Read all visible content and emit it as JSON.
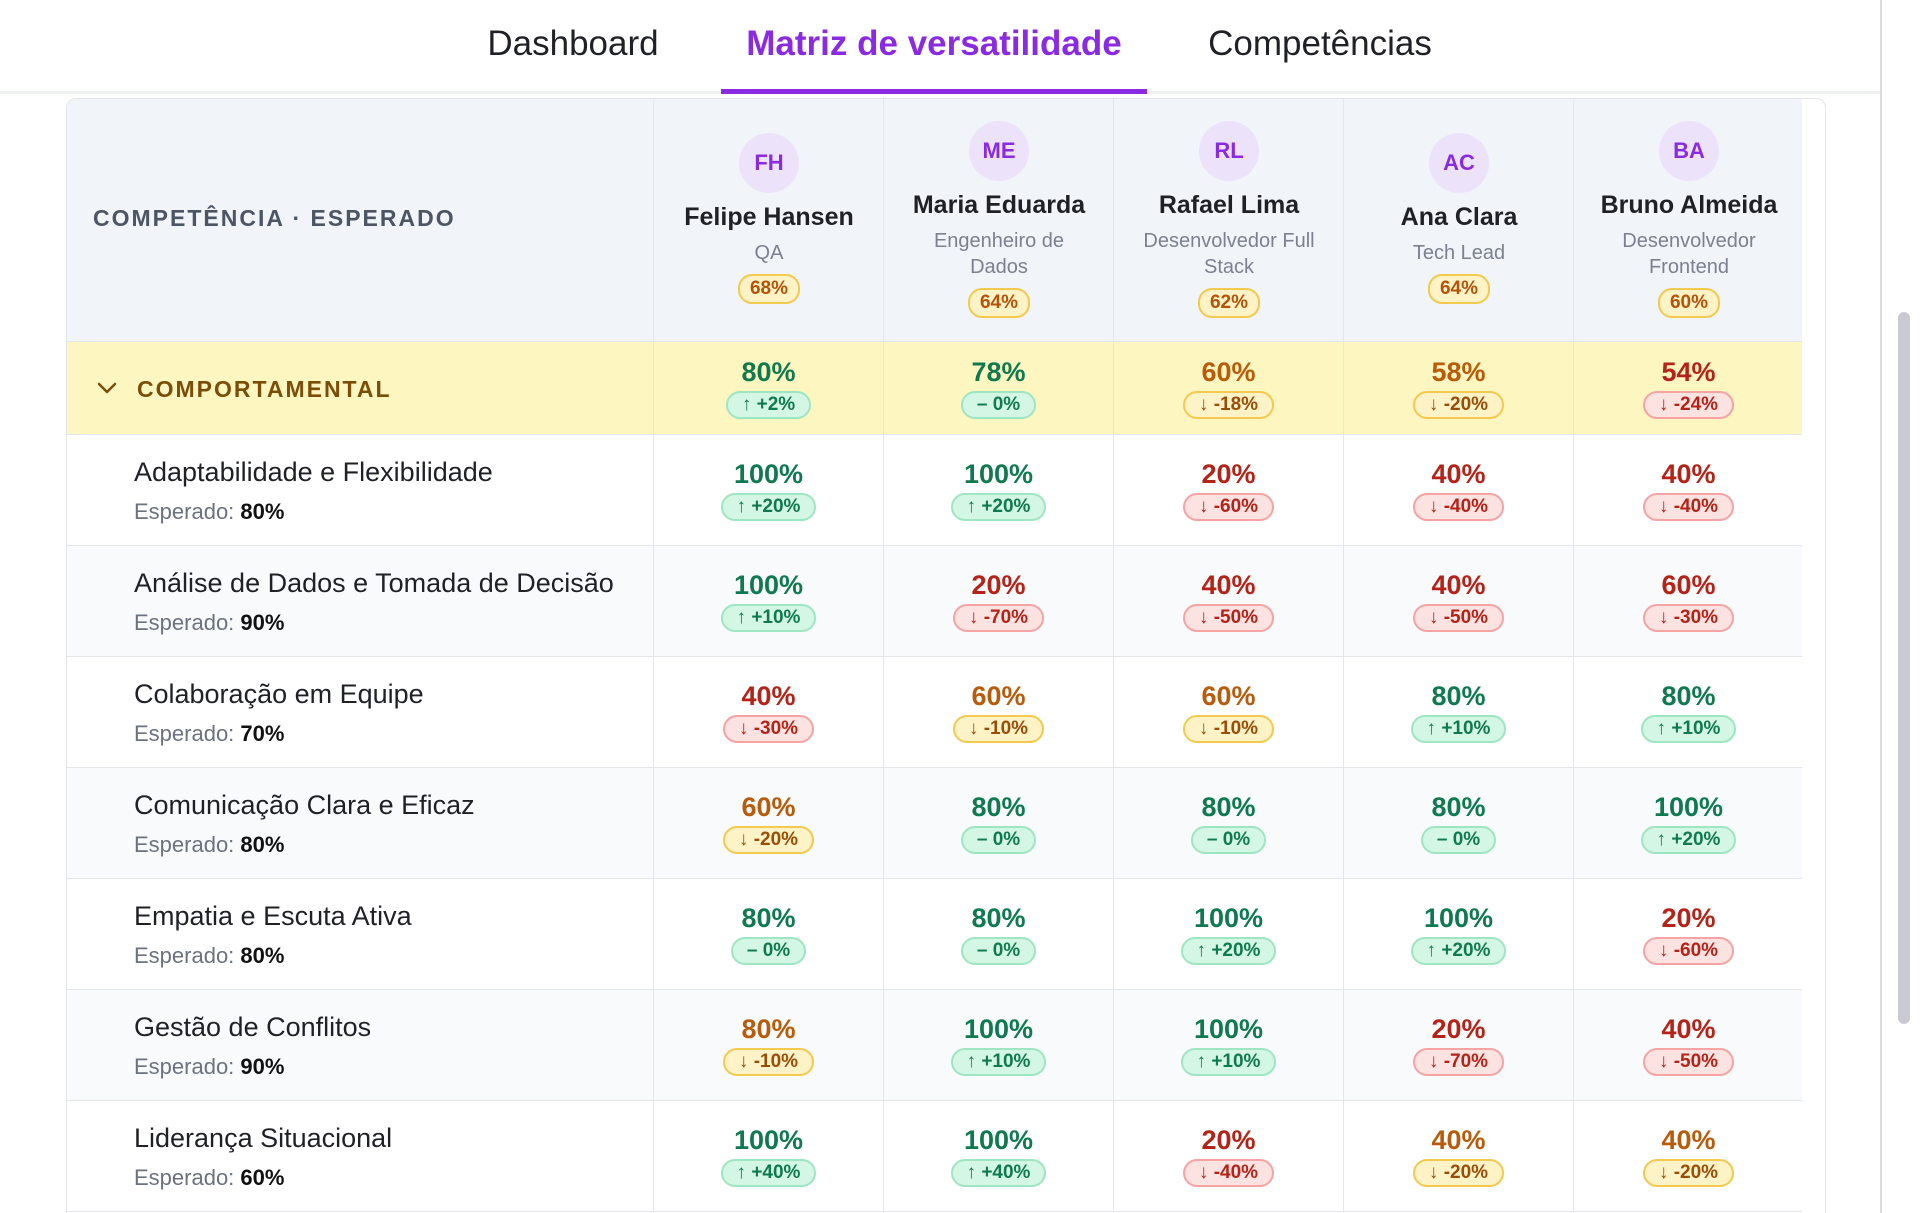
{
  "tabs": [
    {
      "label": "Dashboard",
      "active": false
    },
    {
      "label": "Matriz de versatilidade",
      "active": true
    },
    {
      "label": "Competências",
      "active": false
    }
  ],
  "header": {
    "competency_label": "COMPETÊNCIA · ESPERADO"
  },
  "people": [
    {
      "initials": "FH",
      "name": "Felipe Hansen",
      "role": "QA",
      "score": "68%"
    },
    {
      "initials": "ME",
      "name": "Maria Eduarda",
      "role": "Engenheiro de Dados",
      "score": "64%"
    },
    {
      "initials": "RL",
      "name": "Rafael Lima",
      "role": "Desenvolvedor Full Stack",
      "score": "62%"
    },
    {
      "initials": "AC",
      "name": "Ana Clara",
      "role": "Tech Lead",
      "score": "64%"
    },
    {
      "initials": "BA",
      "name": "Bruno Almeida",
      "role": "Desenvolvedor Frontend",
      "score": "60%"
    }
  ],
  "group": {
    "label": "COMPORTAMENTAL",
    "cells": [
      {
        "value": "80%",
        "delta": "↑ +2%",
        "status": "g"
      },
      {
        "value": "78%",
        "delta": "– 0%",
        "status": "g"
      },
      {
        "value": "60%",
        "delta": "↓ -18%",
        "status": "o"
      },
      {
        "value": "58%",
        "delta": "↓ -20%",
        "status": "o"
      },
      {
        "value": "54%",
        "delta": "↓ -24%",
        "status": "r"
      }
    ]
  },
  "expected_label": "Esperado:",
  "competencies": [
    {
      "name": "Adaptabilidade e Flexibilidade",
      "expected": "80%",
      "cells": [
        {
          "value": "100%",
          "delta": "↑ +20%",
          "status": "g"
        },
        {
          "value": "100%",
          "delta": "↑ +20%",
          "status": "g"
        },
        {
          "value": "20%",
          "delta": "↓ -60%",
          "status": "r"
        },
        {
          "value": "40%",
          "delta": "↓ -40%",
          "status": "r"
        },
        {
          "value": "40%",
          "delta": "↓ -40%",
          "status": "r"
        }
      ]
    },
    {
      "name": "Análise de Dados e Tomada de Decisão",
      "expected": "90%",
      "cells": [
        {
          "value": "100%",
          "delta": "↑ +10%",
          "status": "g"
        },
        {
          "value": "20%",
          "delta": "↓ -70%",
          "status": "r"
        },
        {
          "value": "40%",
          "delta": "↓ -50%",
          "status": "r"
        },
        {
          "value": "40%",
          "delta": "↓ -50%",
          "status": "r"
        },
        {
          "value": "60%",
          "delta": "↓ -30%",
          "status": "r"
        }
      ]
    },
    {
      "name": "Colaboração em Equipe",
      "expected": "70%",
      "cells": [
        {
          "value": "40%",
          "delta": "↓ -30%",
          "status": "r"
        },
        {
          "value": "60%",
          "delta": "↓ -10%",
          "status": "o"
        },
        {
          "value": "60%",
          "delta": "↓ -10%",
          "status": "o"
        },
        {
          "value": "80%",
          "delta": "↑ +10%",
          "status": "g"
        },
        {
          "value": "80%",
          "delta": "↑ +10%",
          "status": "g"
        }
      ]
    },
    {
      "name": "Comunicação Clara e Eficaz",
      "expected": "80%",
      "cells": [
        {
          "value": "60%",
          "delta": "↓ -20%",
          "status": "o"
        },
        {
          "value": "80%",
          "delta": "– 0%",
          "status": "g"
        },
        {
          "value": "80%",
          "delta": "– 0%",
          "status": "g"
        },
        {
          "value": "80%",
          "delta": "– 0%",
          "status": "g"
        },
        {
          "value": "100%",
          "delta": "↑ +20%",
          "status": "g"
        }
      ]
    },
    {
      "name": "Empatia e Escuta Ativa",
      "expected": "80%",
      "cells": [
        {
          "value": "80%",
          "delta": "– 0%",
          "status": "g"
        },
        {
          "value": "80%",
          "delta": "– 0%",
          "status": "g"
        },
        {
          "value": "100%",
          "delta": "↑ +20%",
          "status": "g"
        },
        {
          "value": "100%",
          "delta": "↑ +20%",
          "status": "g"
        },
        {
          "value": "20%",
          "delta": "↓ -60%",
          "status": "r"
        }
      ]
    },
    {
      "name": "Gestão de Conflitos",
      "expected": "90%",
      "cells": [
        {
          "value": "80%",
          "delta": "↓ -10%",
          "status": "o"
        },
        {
          "value": "100%",
          "delta": "↑ +10%",
          "status": "g"
        },
        {
          "value": "100%",
          "delta": "↑ +10%",
          "status": "g"
        },
        {
          "value": "20%",
          "delta": "↓ -70%",
          "status": "r"
        },
        {
          "value": "40%",
          "delta": "↓ -50%",
          "status": "r"
        }
      ]
    },
    {
      "name": "Liderança Situacional",
      "expected": "60%",
      "cells": [
        {
          "value": "100%",
          "delta": "↑ +40%",
          "status": "g"
        },
        {
          "value": "100%",
          "delta": "↑ +40%",
          "status": "g"
        },
        {
          "value": "20%",
          "delta": "↓ -40%",
          "status": "r"
        },
        {
          "value": "40%",
          "delta": "↓ -20%",
          "status": "o"
        },
        {
          "value": "40%",
          "delta": "↓ -20%",
          "status": "o"
        }
      ]
    }
  ],
  "colors": {
    "accent": "#8a2be2",
    "good": "#0f7a4f",
    "warn": "#b85b0a",
    "bad": "#b42318",
    "group_bg": "#fef6c0"
  }
}
